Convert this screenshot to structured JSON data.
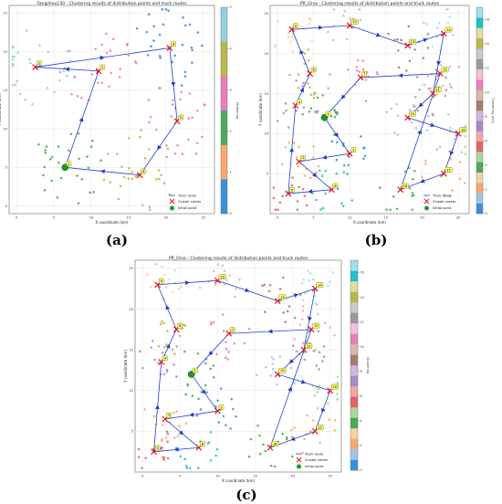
{
  "panel_labels": [
    "(a)",
    "(b)",
    "(c)"
  ],
  "chart_data": [
    {
      "type": "scatter",
      "panel": "(a)",
      "title": "Fangzhou150 - Clustering results of distribution points and truck routes",
      "xlabel": "X coordinate (km)",
      "ylabel": "Y coordinate (km)",
      "colorbar_label": "Clustering",
      "colorbar_ticks": [
        0,
        1,
        2,
        3,
        4,
        5
      ],
      "colorbar_range": [
        0,
        5
      ],
      "xlim": [
        -1,
        26.5
      ],
      "ylim": [
        -1,
        26
      ],
      "xticks": [
        0,
        5,
        10,
        15,
        20,
        25
      ],
      "yticks": [
        0,
        5,
        10,
        15,
        20,
        25
      ],
      "colors": [
        "#3b8fd9",
        "#f9a86a",
        "#4ea85b",
        "#e77fbf",
        "#b8b84a",
        "#8fcfe0"
      ],
      "clusters": [
        {
          "label": "1",
          "cx": 6.5,
          "cy": 5.0,
          "color_index": 2
        },
        {
          "label": "2",
          "cx": 11.0,
          "cy": 17.5,
          "color_index": 3
        },
        {
          "label": "3",
          "cx": 2.5,
          "cy": 18.0,
          "color_index": 5
        },
        {
          "label": "4",
          "cx": 20.5,
          "cy": 20.5,
          "color_index": 0
        },
        {
          "label": "5",
          "cx": 21.5,
          "cy": 11.0,
          "color_index": 3
        },
        {
          "label": "6",
          "cx": 16.5,
          "cy": 4.0,
          "color_index": 4
        }
      ],
      "route_order": [
        1,
        2,
        3,
        4,
        5,
        6,
        1
      ],
      "legend": [
        "Truck route",
        "Cluster center",
        "Initial point"
      ],
      "legend_position": "bottom-right"
    },
    {
      "type": "scatter",
      "panel": "(b)",
      "title": "PR_Orsa - Clustering results of distribution points and truck routes",
      "xlabel": "X coordinate (km)",
      "ylabel": "Y coordinate (km)",
      "colorbar_label": "Clustering (km)",
      "colorbar_ticks": [
        0,
        2,
        4,
        6,
        8,
        10,
        12,
        14,
        16
      ],
      "colorbar_range": [
        0,
        17
      ],
      "xlim": [
        -1,
        26.5
      ],
      "ylim": [
        0,
        26
      ],
      "xticks": [
        0,
        5,
        10,
        15,
        20,
        25
      ],
      "yticks": [
        5,
        10,
        15,
        20,
        25
      ],
      "colors": [
        "#3b8fd9",
        "#9ec6ea",
        "#f9a86a",
        "#f6d0a8",
        "#4ea85b",
        "#a6d89a",
        "#e26464",
        "#f2a7a7",
        "#a68acb",
        "#cdb7de",
        "#a87b6a",
        "#d8b9b0",
        "#e77fbf",
        "#f4bfdc",
        "#9a9a9a",
        "#c9c9c9",
        "#b8b84a",
        "#dede9e",
        "#22bfd0",
        "#9fe0ea"
      ],
      "clusters": [
        {
          "label": "1",
          "cx": 6.5,
          "cy": 12.0,
          "color_index": 4
        },
        {
          "label": "2",
          "cx": 10.0,
          "cy": 7.5,
          "color_index": 0
        },
        {
          "label": "3",
          "cx": 3.0,
          "cy": 6.5,
          "color_index": 2
        },
        {
          "label": "4",
          "cx": 2.5,
          "cy": 13.5,
          "color_index": 8
        },
        {
          "label": "5",
          "cx": 1.5,
          "cy": 2.5,
          "color_index": 6
        },
        {
          "label": "6",
          "cx": 4.5,
          "cy": 17.5,
          "color_index": 16
        },
        {
          "label": "7",
          "cx": 11.5,
          "cy": 17.0,
          "color_index": 12
        },
        {
          "label": "8",
          "cx": 7.5,
          "cy": 3.0,
          "color_index": 18
        },
        {
          "label": "9",
          "cx": 2.0,
          "cy": 23.0,
          "color_index": 3
        },
        {
          "label": "10",
          "cx": 10.0,
          "cy": 23.5,
          "color_index": 9
        },
        {
          "label": "11",
          "cx": 21.5,
          "cy": 15.0,
          "color_index": 14
        },
        {
          "label": "12",
          "cx": 22.5,
          "cy": 17.5,
          "color_index": 7
        },
        {
          "label": "13",
          "cx": 18.0,
          "cy": 21.0,
          "color_index": 10
        },
        {
          "label": "14",
          "cx": 23.0,
          "cy": 22.5,
          "color_index": 19
        },
        {
          "label": "15",
          "cx": 18.0,
          "cy": 12.0,
          "color_index": 1
        },
        {
          "label": "16",
          "cx": 25.0,
          "cy": 10.0,
          "color_index": 5
        },
        {
          "label": "17",
          "cx": 23.0,
          "cy": 5.0,
          "color_index": 2
        },
        {
          "label": "18",
          "cx": 17.0,
          "cy": 3.0,
          "color_index": 4
        }
      ],
      "route_order": [
        1,
        2,
        3,
        8,
        5,
        4,
        6,
        9,
        10,
        13,
        14,
        11,
        15,
        16,
        17,
        18,
        12,
        7,
        1
      ],
      "legend": [
        "Truck route",
        "Cluster center",
        "Initial point"
      ],
      "legend_position": "bottom-right"
    },
    {
      "type": "scatter",
      "panel": "(c)",
      "title": "PR_Orsa - Clustering results of distribution points and truck routes",
      "xlabel": "X coordinate (km)",
      "ylabel": "Y coordinate (km)",
      "colorbar_label": "Clustering",
      "colorbar_ticks": [
        0,
        2,
        4,
        6,
        8,
        10,
        12,
        14,
        16
      ],
      "colorbar_range": [
        0,
        17
      ],
      "xlim": [
        -1,
        26.5
      ],
      "ylim": [
        0,
        26
      ],
      "xticks": [
        0,
        5,
        10,
        15,
        20,
        25
      ],
      "yticks": [
        5,
        10,
        15,
        20,
        25
      ],
      "colors": [
        "#3b8fd9",
        "#9ec6ea",
        "#f9a86a",
        "#f6d0a8",
        "#4ea85b",
        "#a6d89a",
        "#e26464",
        "#f2a7a7",
        "#a68acb",
        "#cdb7de",
        "#a87b6a",
        "#d8b9b0",
        "#e77fbf",
        "#f4bfdc",
        "#9a9a9a",
        "#c9c9c9",
        "#b8b84a",
        "#dede9e",
        "#22bfd0",
        "#9fe0ea"
      ],
      "clusters": [
        {
          "label": "1",
          "cx": 6.5,
          "cy": 12.0,
          "color_index": 4
        },
        {
          "label": "2",
          "cx": 10.0,
          "cy": 7.5,
          "color_index": 0
        },
        {
          "label": "3",
          "cx": 3.0,
          "cy": 6.5,
          "color_index": 2
        },
        {
          "label": "4",
          "cx": 2.5,
          "cy": 13.5,
          "color_index": 8
        },
        {
          "label": "5",
          "cx": 1.5,
          "cy": 2.5,
          "color_index": 6
        },
        {
          "label": "6",
          "cx": 4.5,
          "cy": 17.5,
          "color_index": 16
        },
        {
          "label": "7",
          "cx": 11.5,
          "cy": 17.0,
          "color_index": 12
        },
        {
          "label": "8",
          "cx": 7.5,
          "cy": 3.0,
          "color_index": 18
        },
        {
          "label": "9",
          "cx": 2.0,
          "cy": 23.0,
          "color_index": 3
        },
        {
          "label": "10",
          "cx": 10.0,
          "cy": 23.5,
          "color_index": 9
        },
        {
          "label": "11",
          "cx": 21.5,
          "cy": 15.0,
          "color_index": 14
        },
        {
          "label": "12",
          "cx": 22.5,
          "cy": 17.5,
          "color_index": 7
        },
        {
          "label": "13",
          "cx": 18.0,
          "cy": 21.0,
          "color_index": 10
        },
        {
          "label": "14",
          "cx": 23.0,
          "cy": 22.5,
          "color_index": 19
        },
        {
          "label": "15",
          "cx": 18.0,
          "cy": 12.0,
          "color_index": 1
        },
        {
          "label": "16",
          "cx": 25.0,
          "cy": 10.0,
          "color_index": 5
        },
        {
          "label": "17",
          "cx": 23.0,
          "cy": 5.0,
          "color_index": 2
        },
        {
          "label": "18",
          "cx": 17.0,
          "cy": 3.0,
          "color_index": 4
        }
      ],
      "route_order": [
        1,
        2,
        3,
        8,
        5,
        4,
        6,
        9,
        10,
        13,
        14,
        11,
        15,
        16,
        17,
        18,
        12,
        7,
        1
      ],
      "legend": [
        "Truck route",
        "Cluster center",
        "Initial point"
      ],
      "legend_position": "bottom-right"
    }
  ]
}
